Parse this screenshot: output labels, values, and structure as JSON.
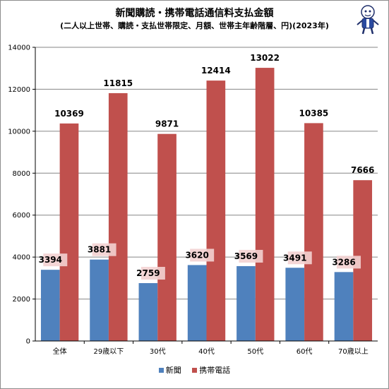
{
  "title": "新聞購読・携帯電話通信料支払金額",
  "subtitle": "(二人以上世帯、購読・支払世帯限定、月額、世帯主年齢階層、円)(2023年)",
  "colors": {
    "newspaper": "#4f81bd",
    "mobile": "#c0504d",
    "grid": "#868686",
    "label_bg": "#f3d2d1"
  },
  "chart_data": {
    "type": "bar",
    "title": "新聞購読・携帯電話通信料支払金額",
    "subtitle": "(二人以上世帯、購読・支払世帯限定、月額、世帯主年齢階層、円)(2023年)",
    "categories": [
      "全体",
      "29歳以下",
      "30代",
      "40代",
      "50代",
      "60代",
      "70歳以上"
    ],
    "series": [
      {
        "name": "新聞",
        "values": [
          3394,
          3881,
          2759,
          3620,
          3569,
          3491,
          3286
        ]
      },
      {
        "name": "携帯電話",
        "values": [
          10369,
          11815,
          9871,
          12414,
          13022,
          10385,
          7666
        ]
      }
    ],
    "ylim": [
      0,
      14000
    ],
    "yticks": [
      0,
      2000,
      4000,
      6000,
      8000,
      10000,
      12000,
      14000
    ],
    "ytick_labels": [
      "0",
      "2000",
      "4000",
      "6000",
      "8000",
      "10000",
      "12000",
      "14000"
    ],
    "grid": true,
    "legend": "bottom",
    "xlabel": "",
    "ylabel": ""
  }
}
